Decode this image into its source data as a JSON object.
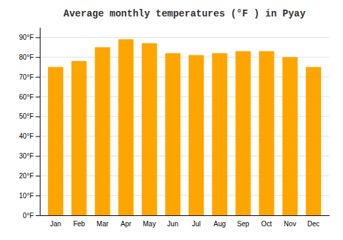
{
  "chart_data": {
    "type": "bar",
    "title": "Average monthly temperatures (°F ) in Pyay",
    "categories": [
      "Jan",
      "Feb",
      "Mar",
      "Apr",
      "May",
      "Jun",
      "Jul",
      "Aug",
      "Sep",
      "Oct",
      "Nov",
      "Dec"
    ],
    "values": [
      75,
      78,
      85,
      89,
      87,
      82,
      81,
      82,
      83,
      83,
      80,
      75
    ],
    "color": "#FFA500",
    "ylim": [
      0,
      95
    ],
    "yticks": [
      {
        "value": 0,
        "label": "0°F"
      },
      {
        "value": 10,
        "label": "10°F"
      },
      {
        "value": 20,
        "label": "20°F"
      },
      {
        "value": 30,
        "label": "30°F"
      },
      {
        "value": 40,
        "label": "40°F"
      },
      {
        "value": 50,
        "label": "50°F"
      },
      {
        "value": 60,
        "label": "60°F"
      },
      {
        "value": 70,
        "label": "70°F"
      },
      {
        "value": 80,
        "label": "80°F"
      },
      {
        "value": 90,
        "label": "90°F"
      }
    ],
    "grid": true
  }
}
